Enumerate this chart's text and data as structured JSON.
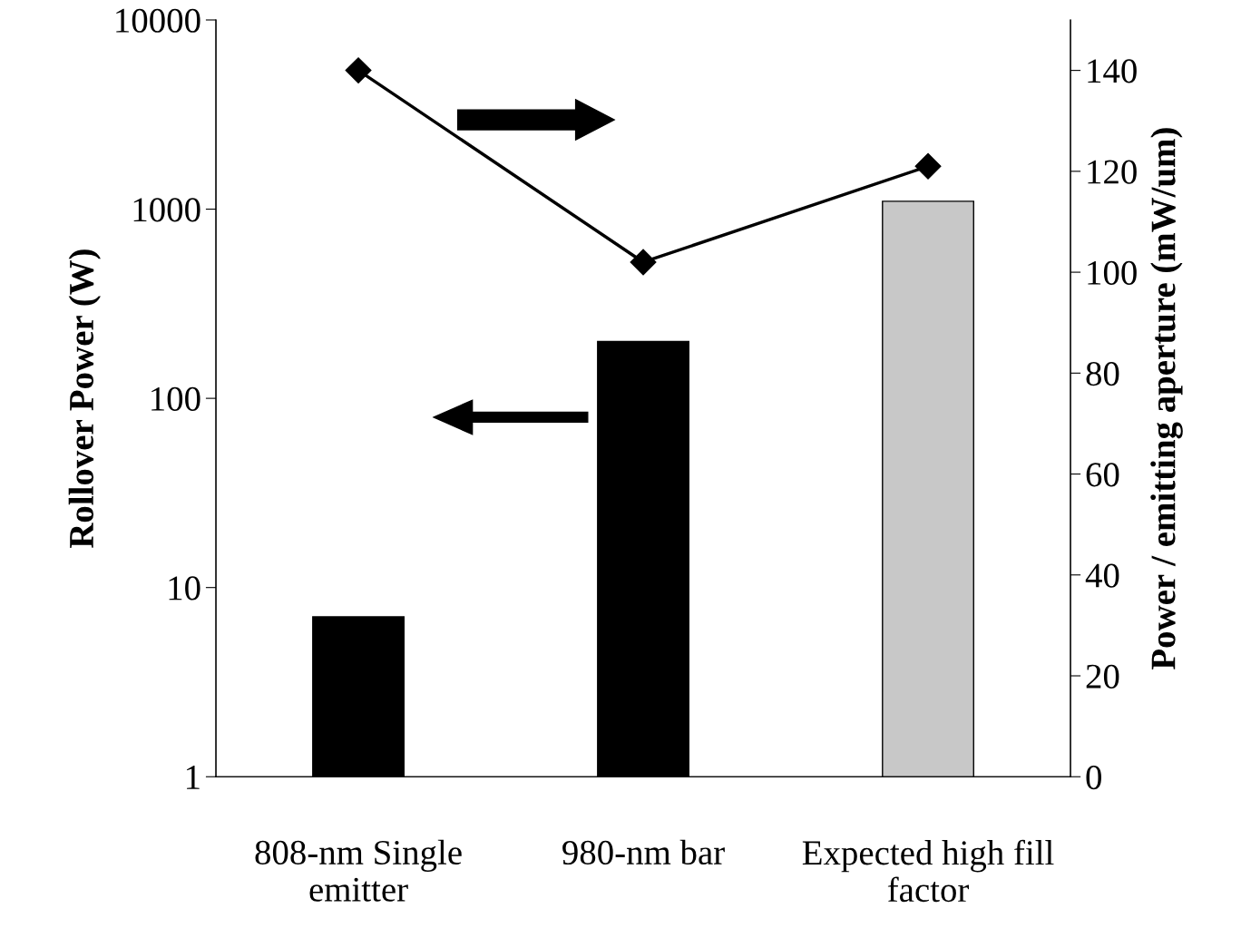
{
  "chart_data": {
    "type": "bar",
    "ylabel": "Rollover Power (W)",
    "y2label": "Power / emitting aperture (mW/um)",
    "categories": [
      "808-nm Single\nemitter",
      "980-nm bar",
      "Expected high fill\nfactor"
    ],
    "log": "y",
    "ylim": [
      1,
      10000
    ],
    "yticks": [
      1,
      10,
      100,
      1000,
      10000
    ],
    "y2lim": [
      0,
      150
    ],
    "y2ticks": [
      0,
      20,
      40,
      60,
      80,
      100,
      120,
      140
    ],
    "legend": false,
    "grid": false,
    "series": [
      {
        "values": [
          7,
          200,
          1100
        ],
        "colors": [
          "#000000",
          "#000000",
          "#c8c8c8"
        ]
      },
      {
        "type": "line",
        "axis": "y2",
        "values": [
          140,
          102,
          121
        ],
        "color": "#000000",
        "marker": "diamond",
        "line_style": "solid"
      }
    ]
  }
}
